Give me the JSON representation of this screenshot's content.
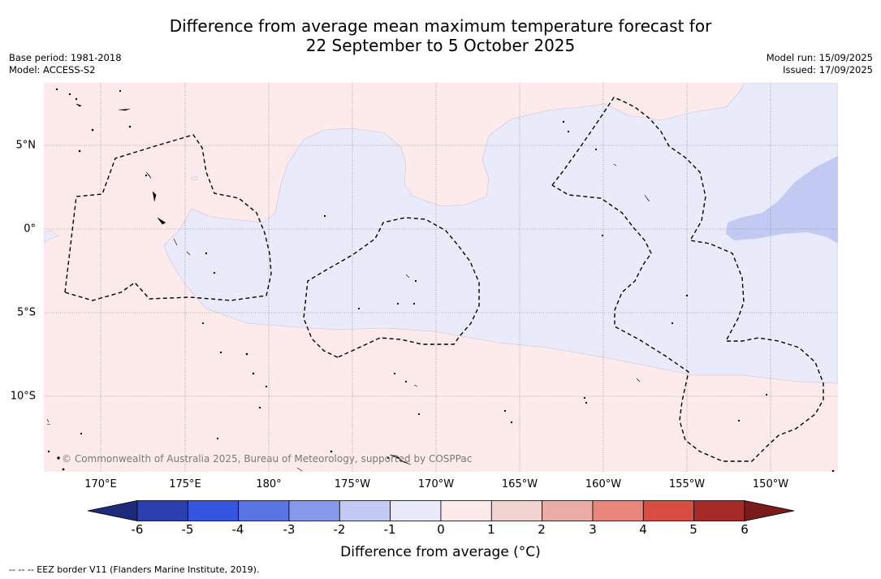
{
  "title_line1": "Difference from average mean maximum temperature forecast for",
  "title_line2": "22 September to 5 October 2025",
  "base_period": "Base period: 1981-2018",
  "model": "Model: ACCESS-S2",
  "model_run": "Model run: 15/09/2025",
  "issued": "Issued: 17/09/2025",
  "copyright": "© Commonwealth of Australia 2025, Bureau of Meteorology, supported by COSPPac",
  "lon_labels": [
    "170°E",
    "175°E",
    "180°",
    "175°W",
    "170°W",
    "165°W",
    "160°W",
    "155°W",
    "150°W"
  ],
  "lat_labels": [
    "5°N",
    "0°",
    "5°S",
    "10°S"
  ],
  "colorbar": {
    "title": "Difference from average (°C)",
    "ticks": [
      "-6",
      "-5",
      "-4",
      "-3",
      "-2",
      "-1",
      "0",
      "1",
      "2",
      "3",
      "4",
      "5",
      "6"
    ],
    "colors": [
      "#1d2b7a",
      "#2c3fb0",
      "#3555e0",
      "#5b74e4",
      "#8799eb",
      "#c2c9f3",
      "#e9ebfb",
      "#fcebea",
      "#f1d3d1",
      "#ebaca5",
      "#e8867c",
      "#d94d43",
      "#a62b28",
      "#7a1a1a"
    ]
  },
  "map_colors": {
    "warm_light": "#fcebea",
    "cool_light": "#e9ebfb",
    "cool_medium": "#c2c9f3"
  },
  "footnote": "--  --  -- EEZ border V11 (Flanders Marine Institute, 2019)."
}
